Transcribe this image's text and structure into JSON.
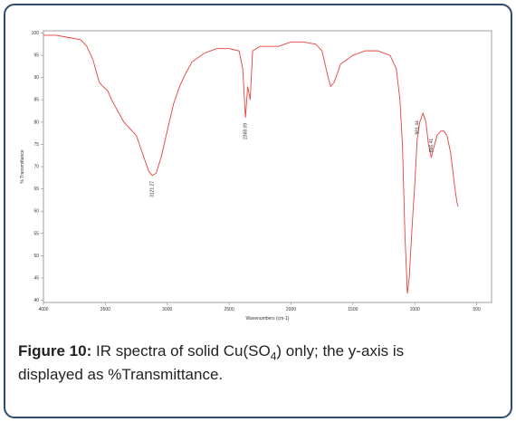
{
  "chart_data": {
    "type": "line",
    "xlabel": "Wavenumbers (cm-1)",
    "ylabel": "% Transmittance",
    "xlim": [
      4000,
      380
    ],
    "ylim": [
      39.5,
      100.5
    ],
    "xticks": [
      4000,
      3500,
      3000,
      2500,
      2000,
      1500,
      1000,
      500
    ],
    "yticks": [
      40,
      45,
      50,
      55,
      60,
      65,
      70,
      75,
      80,
      85,
      90,
      95,
      100
    ],
    "series": [
      {
        "name": null,
        "color": "#e8403c",
        "x": [
          4000,
          3900,
          3800,
          3700,
          3650,
          3600,
          3550,
          3520,
          3480,
          3450,
          3400,
          3350,
          3300,
          3250,
          3200,
          3150,
          3121.27,
          3090,
          3050,
          3000,
          2950,
          2900,
          2850,
          2800,
          2700,
          2600,
          2500,
          2420,
          2390,
          2368.09,
          2350,
          2330,
          2310,
          2250,
          2100,
          2000,
          1900,
          1800,
          1750,
          1700,
          1680,
          1650,
          1600,
          1500,
          1400,
          1300,
          1200,
          1150,
          1120,
          1100,
          1080,
          1060,
          1045,
          1025,
          1010,
          1000,
          981.44,
          960,
          934,
          910,
          890,
          866.41,
          850,
          820,
          790,
          765,
          740,
          710,
          680,
          660,
          650
        ],
        "values": [
          99.5,
          99.5,
          99,
          98.5,
          97,
          94,
          89,
          88,
          87,
          85,
          82.5,
          80,
          78.5,
          77,
          73,
          69,
          68,
          68.5,
          72,
          78,
          84,
          88,
          91,
          93.5,
          95.5,
          96.5,
          96.5,
          96,
          92,
          81,
          88,
          85,
          96,
          97,
          97,
          98,
          98,
          97.5,
          96,
          90,
          88,
          89,
          93,
          95,
          96,
          96,
          95,
          92,
          85,
          75,
          55,
          41.5,
          45,
          55,
          62,
          66,
          76,
          80,
          82,
          80,
          75,
          72,
          74,
          77,
          78,
          78,
          77,
          73,
          66,
          62,
          61
        ]
      }
    ],
    "annotations": [
      {
        "text": "3121.27",
        "x": 3121.27,
        "y": 68
      },
      {
        "text": "2368.09",
        "x": 2368.09,
        "y": 81
      },
      {
        "text": "981.44",
        "x": 981.44,
        "y": 76
      },
      {
        "text": "866.41",
        "x": 866.41,
        "y": 72
      }
    ]
  },
  "caption": {
    "label": "Figure 10:",
    "text1": "IR spectra of solid Cu(SO",
    "sub": "4",
    "text2": ") only; the y-axis is",
    "text3": "displayed as %Transmittance."
  }
}
